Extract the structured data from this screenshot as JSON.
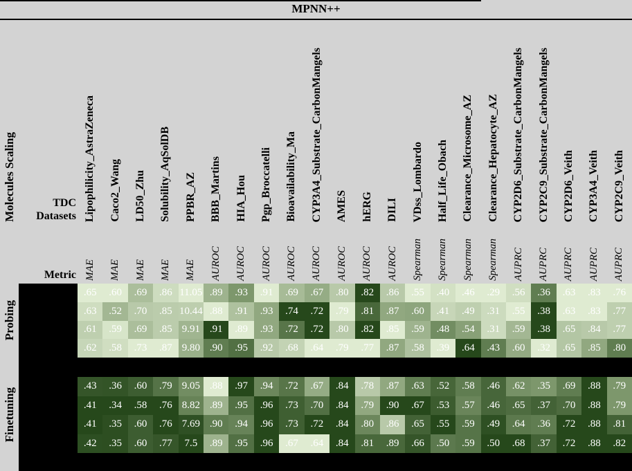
{
  "title": "MPNN++",
  "left_labels": {
    "group_axis": "Molecules Scaling",
    "datasets_header_line1": "TDC",
    "datasets_header_line2": "Datasets",
    "metric_header": "Metric"
  },
  "colors": {
    "background": "#d3d3d3",
    "panel": "#000000",
    "cell_text": "#ffffff",
    "rule": "#000000"
  },
  "chart_data": {
    "type": "heatmap",
    "title": "MPNN++",
    "normalization": "per-column min-max; darker green = better (lower for MAE, higher for AUROC/Spearman/AUPRC)",
    "colormap": {
      "light": "#dfebd1",
      "mid": "#7d976c",
      "dark": "#26481b"
    },
    "columns": [
      {
        "name": "Lipophilicity_AstraZeneca",
        "metric": "MAE"
      },
      {
        "name": "Caco2_Wang",
        "metric": "MAE"
      },
      {
        "name": "LD50_Zhu",
        "metric": "MAE"
      },
      {
        "name": "Solubility_AqSolDB",
        "metric": "MAE"
      },
      {
        "name": "PPBR_AZ",
        "metric": "MAE"
      },
      {
        "name": "BBB_Martins",
        "metric": "AUROC"
      },
      {
        "name": "HIA_Hou",
        "metric": "AUROC"
      },
      {
        "name": "Pgp_Broccatelli",
        "metric": "AUROC"
      },
      {
        "name": "Bioavailability_Ma",
        "metric": "AUROC"
      },
      {
        "name": "CYP3A4_Substrate_CarbonMangels",
        "metric": "AUROC"
      },
      {
        "name": "AMES",
        "metric": "AUROC"
      },
      {
        "name": "hERG",
        "metric": "AUROC"
      },
      {
        "name": "DILI",
        "metric": "AUROC"
      },
      {
        "name": "VDss_Lombardo",
        "metric": "Spearman"
      },
      {
        "name": "Half_Life_Obach",
        "metric": "Spearman"
      },
      {
        "name": "Clearance_Microsome_AZ",
        "metric": "Spearman"
      },
      {
        "name": "Clearance_Hepatocyte_AZ",
        "metric": "Spearman"
      },
      {
        "name": "CYP2D6_Substrate_CarbonMangels",
        "metric": "AUPRC"
      },
      {
        "name": "CYP2C9_Substrate_CarbonMangels",
        "metric": "AUPRC"
      },
      {
        "name": "CYP2D6_Veith",
        "metric": "AUPRC"
      },
      {
        "name": "CYP3A4_Veith",
        "metric": "AUPRC"
      },
      {
        "name": "CYP2C9_Veith",
        "metric": "AUPRC"
      }
    ],
    "metric_better": {
      "MAE": "lower",
      "AUROC": "higher",
      "Spearman": "higher",
      "AUPRC": "higher"
    },
    "row_groups": [
      {
        "name": "Probing",
        "rows": [
          [
            ".65",
            ".60",
            ".69",
            ".86",
            "11.05",
            ".89",
            ".93",
            ".91",
            ".69",
            ".67",
            ".80",
            ".82",
            ".86",
            ".55",
            ".40",
            ".46",
            ".29",
            ".56",
            ".36",
            ".63",
            ".83",
            ".76"
          ],
          [
            ".63",
            ".52",
            ".70",
            ".85",
            "10.44",
            ".88",
            ".91",
            ".93",
            ".74",
            ".72",
            ".79",
            ".81",
            ".87",
            ".60",
            ".41",
            ".49",
            ".31",
            ".55",
            ".38",
            ".63",
            ".83",
            ".77"
          ],
          [
            ".61",
            ".59",
            ".69",
            ".85",
            "9.91",
            ".91",
            ".89",
            ".93",
            ".72",
            ".72",
            ".80",
            ".82",
            ".85",
            ".59",
            ".48",
            ".54",
            ".31",
            ".59",
            ".38",
            ".65",
            ".84",
            ".77"
          ],
          [
            ".62",
            ".58",
            ".73",
            ".87",
            "9.80",
            ".90",
            ".95",
            ".92",
            ".68",
            ".64",
            ".79",
            ".77",
            ".87",
            ".58",
            ".39",
            ".64",
            ".43",
            ".60",
            ".32",
            ".65",
            ".85",
            ".80"
          ]
        ]
      },
      {
        "name": "Finetuning",
        "rows": [
          [
            ".43",
            ".36",
            ".60",
            ".79",
            "9.05",
            ".88",
            ".97",
            ".94",
            ".72",
            ".67",
            ".84",
            ".78",
            ".87",
            ".63",
            ".52",
            ".58",
            ".46",
            ".62",
            ".35",
            ".69",
            ".88",
            ".79"
          ],
          [
            ".41",
            ".34",
            ".58",
            ".76",
            "8.82",
            ".89",
            ".95",
            ".96",
            ".73",
            ".70",
            ".84",
            ".79",
            ".90",
            ".67",
            ".53",
            ".57",
            ".46",
            ".65",
            ".37",
            ".70",
            ".88",
            ".79"
          ],
          [
            ".41",
            ".35",
            ".60",
            ".76",
            "7.69",
            ".90",
            ".94",
            ".96",
            ".73",
            ".72",
            ".84",
            ".80",
            ".86",
            ".65",
            ".55",
            ".59",
            ".49",
            ".64",
            ".36",
            ".72",
            ".88",
            ".81"
          ],
          [
            ".42",
            ".35",
            ".60",
            ".77",
            "7.5",
            ".89",
            ".95",
            ".96",
            ".67",
            ".64",
            ".84",
            ".81",
            ".89",
            ".66",
            ".50",
            ".59",
            ".50",
            ".68",
            ".37",
            ".72",
            ".88",
            ".82"
          ]
        ]
      }
    ]
  }
}
